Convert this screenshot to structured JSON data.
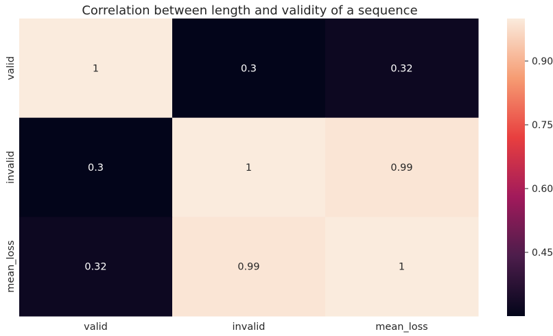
{
  "chart_data": {
    "type": "heatmap",
    "title": "Correlation between length and validity of a sequence",
    "x_categories": [
      "valid",
      "invalid",
      "mean_loss"
    ],
    "y_categories": [
      "valid",
      "invalid",
      "mean_loss"
    ],
    "values": [
      [
        1,
        0.3,
        0.32
      ],
      [
        0.3,
        1,
        0.99
      ],
      [
        0.32,
        0.99,
        1
      ]
    ],
    "cell_labels": [
      [
        "1",
        "0.3",
        "0.32"
      ],
      [
        "0.3",
        "1",
        "0.99"
      ],
      [
        "0.32",
        "0.99",
        "1"
      ]
    ],
    "colorbar": {
      "min": 0.3,
      "max": 1.0,
      "ticks": [
        0.45,
        0.6,
        0.75,
        0.9
      ],
      "tick_labels": [
        "0.45",
        "0.60",
        "0.75",
        "0.90"
      ]
    },
    "colormap": "rocket",
    "colormap_stops": [
      "#03051a",
      "#4c1d4b",
      "#a11a5b",
      "#e83f3f",
      "#f69c73",
      "#faebdd"
    ],
    "grid": false
  }
}
